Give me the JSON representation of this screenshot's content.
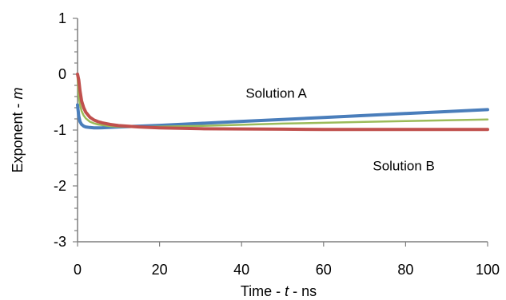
{
  "chart_data": {
    "type": "line",
    "title": "",
    "xlabel": {
      "prefix": "Time - ",
      "variable": "t",
      "suffix": " - ns"
    },
    "ylabel": {
      "prefix": "Exponent - ",
      "variable": "m"
    },
    "xlim": [
      0,
      100
    ],
    "ylim": [
      -3,
      1
    ],
    "xticks": [
      0,
      20,
      40,
      60,
      80,
      100
    ],
    "yticks": [
      -3,
      -2,
      -1,
      0,
      1
    ],
    "xtick_labels": [
      "0",
      "20",
      "40",
      "60",
      "80",
      "100"
    ],
    "ytick_labels": [
      "-3",
      "-2",
      "-1",
      "0",
      "1"
    ],
    "grid": false,
    "legend": "none",
    "annotations": [
      {
        "text": "Solution A",
        "x": 41,
        "y": -0.42
      },
      {
        "text": "Solution B",
        "x": 72,
        "y": -1.72
      }
    ],
    "series": [
      {
        "color": "#4a7ebb",
        "width": 4,
        "x": [
          0,
          0.3,
          0.6,
          1,
          1.5,
          2,
          3,
          4,
          5,
          6,
          8,
          10,
          15,
          20,
          30,
          40,
          50,
          60,
          70,
          80,
          90,
          100
        ],
        "y": [
          -0.55,
          -0.75,
          -0.85,
          -0.9,
          -0.93,
          -0.945,
          -0.955,
          -0.96,
          -0.96,
          -0.958,
          -0.952,
          -0.945,
          -0.93,
          -0.915,
          -0.88,
          -0.845,
          -0.81,
          -0.775,
          -0.74,
          -0.705,
          -0.67,
          -0.635
        ]
      },
      {
        "color": "#9bbb59",
        "width": 2.5,
        "x": [
          0,
          0.3,
          0.6,
          1,
          1.5,
          2,
          3,
          4,
          5,
          6,
          8,
          10,
          15,
          20,
          30,
          40,
          50,
          60,
          70,
          80,
          90,
          100
        ],
        "y": [
          -0.05,
          -0.4,
          -0.55,
          -0.66,
          -0.74,
          -0.79,
          -0.85,
          -0.88,
          -0.9,
          -0.91,
          -0.93,
          -0.94,
          -0.945,
          -0.94,
          -0.925,
          -0.905,
          -0.885,
          -0.87,
          -0.855,
          -0.84,
          -0.825,
          -0.81
        ]
      },
      {
        "color": "#c0504d",
        "width": 4,
        "x": [
          0,
          0.3,
          0.6,
          1,
          1.5,
          2,
          3,
          4,
          5,
          6,
          8,
          10,
          15,
          20,
          30,
          40,
          50,
          60,
          70,
          80,
          90,
          100
        ],
        "y": [
          0,
          -0.1,
          -0.3,
          -0.48,
          -0.6,
          -0.68,
          -0.77,
          -0.82,
          -0.85,
          -0.87,
          -0.9,
          -0.92,
          -0.945,
          -0.96,
          -0.975,
          -0.98,
          -0.985,
          -0.99,
          -0.99,
          -0.99,
          -0.99,
          -0.99
        ]
      }
    ]
  }
}
